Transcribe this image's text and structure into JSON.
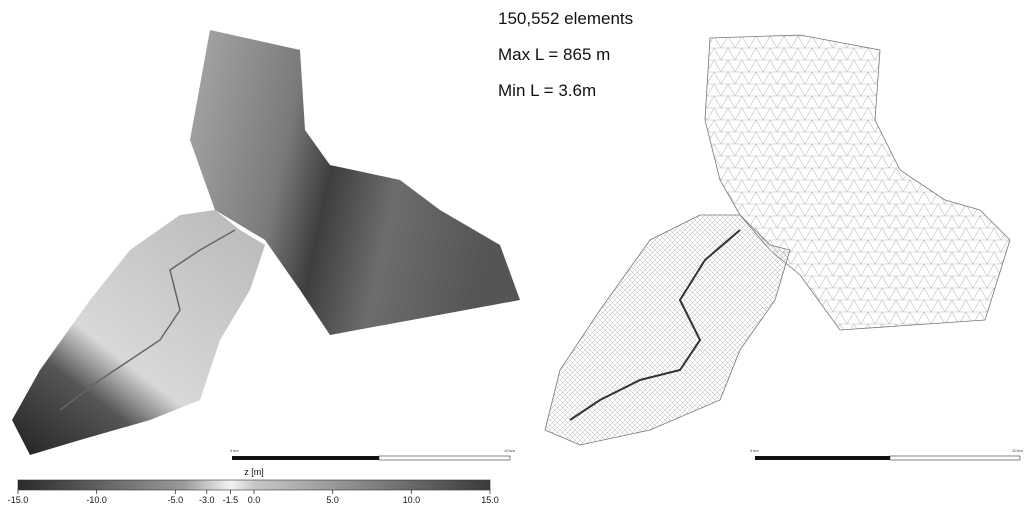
{
  "mesh_info": [
    "150,552 elements",
    "Max L = 865 m",
    "Min L = 3.6m"
  ],
  "scale_bars": [
    {
      "start_label": "0 km",
      "end_label": "10 km"
    },
    {
      "start_label": "0 km",
      "end_label": "10 km"
    }
  ],
  "colorbar": {
    "title": "z [m]",
    "range": [
      -15,
      15
    ],
    "ticks": [
      {
        "value": -15,
        "label": "-15.0"
      },
      {
        "value": -10,
        "label": "-10.0"
      },
      {
        "value": -5,
        "label": "-5.0"
      },
      {
        "value": -3,
        "label": "-3.0"
      },
      {
        "value": -1.5,
        "label": "-1.5"
      },
      {
        "value": 0,
        "label": "0.0"
      },
      {
        "value": 5,
        "label": "5.0"
      },
      {
        "value": 10,
        "label": "10.0"
      },
      {
        "value": 15,
        "label": "15.0"
      }
    ]
  }
}
